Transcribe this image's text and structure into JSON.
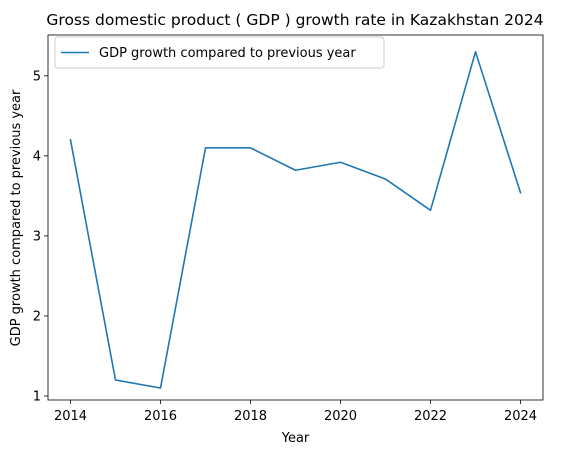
{
  "chart_data": {
    "type": "line",
    "title": "Gross domestic product ( GDP ) growth rate in Kazakhstan 2024",
    "xlabel": "Year",
    "ylabel": "GDP growth compared to previous year",
    "x": [
      2014,
      2015,
      2016,
      2017,
      2018,
      2019,
      2020,
      2021,
      2022,
      2023,
      2024
    ],
    "series": [
      {
        "name": "GDP growth compared to previous year",
        "color": "#1f77b4",
        "values": [
          4.2,
          1.2,
          1.1,
          4.1,
          4.1,
          3.82,
          3.92,
          3.71,
          3.32,
          5.3,
          3.54
        ]
      }
    ],
    "xlim": [
      2013.5,
      2024.5
    ],
    "ylim": [
      0.95,
      5.51
    ],
    "xticks": [
      2014,
      2016,
      2018,
      2020,
      2022,
      2024
    ],
    "yticks": [
      1,
      2,
      3,
      4,
      5
    ],
    "grid": false,
    "legend_position": "upper-left"
  }
}
